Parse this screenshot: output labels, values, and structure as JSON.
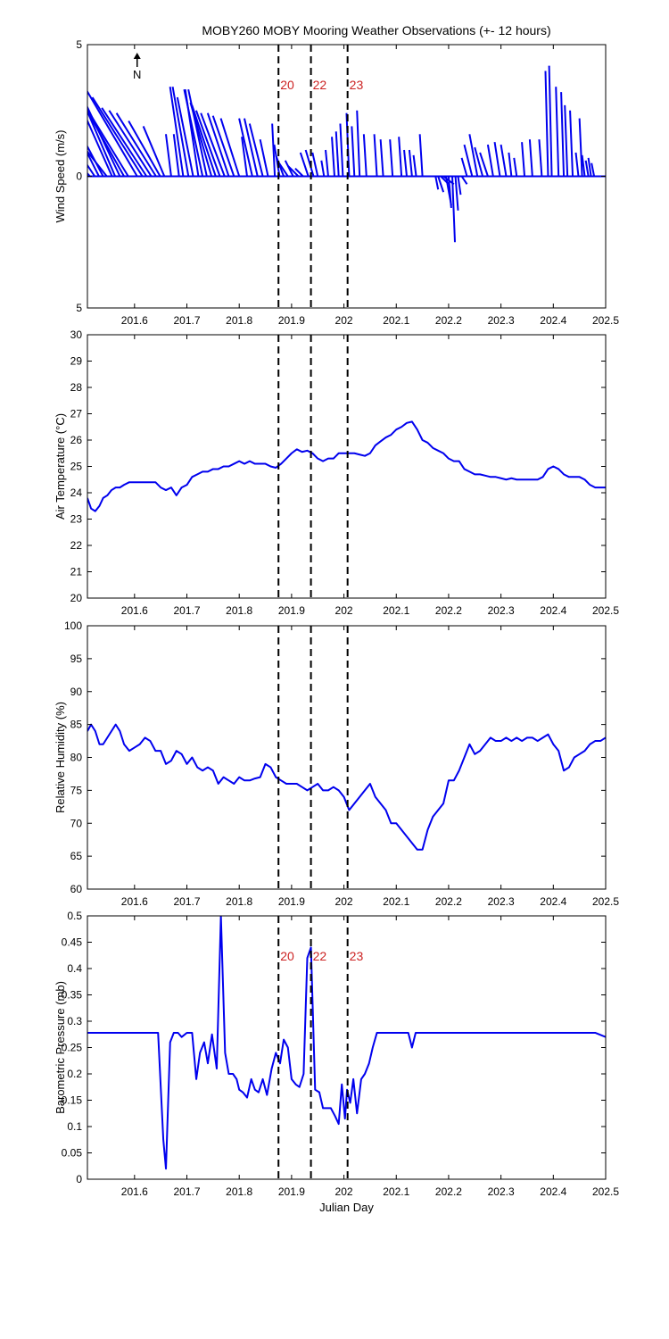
{
  "title": "MOBY260 MOBY Mooring Weather Observations (+- 12 hours)",
  "colors": {
    "series": "#0000ee",
    "event": "#cc2222",
    "axis": "#000000"
  },
  "north_indicator": "N",
  "events": [
    {
      "x": 201.875,
      "label": "20"
    },
    {
      "x": 201.937,
      "label": "22"
    },
    {
      "x": 202.007,
      "label": "23"
    }
  ],
  "chart_data": [
    {
      "id": "wind",
      "type": "vector",
      "ylabel": "Wind Speed (m/s)",
      "xlabel": "",
      "xlim": [
        201.51,
        202.5
      ],
      "ylim": [
        -5,
        5
      ],
      "yticks": [
        -5,
        0,
        5
      ],
      "yticklabels": [
        "5",
        "0",
        "5"
      ],
      "xticks": [
        201.6,
        201.7,
        201.8,
        201.9,
        202,
        202.1,
        202.2,
        202.3,
        202.4,
        202.5
      ],
      "show_event_labels": true,
      "show_north": true,
      "vectors": [
        [
          201.515,
          -3.0,
          3.2
        ],
        [
          201.524,
          -1.8,
          2.7
        ],
        [
          201.532,
          -1.3,
          2.6
        ],
        [
          201.54,
          -0.9,
          1.7
        ],
        [
          201.547,
          -1.1,
          1.4
        ],
        [
          201.557,
          -1.2,
          2.7
        ],
        [
          201.563,
          -1.5,
          3.5
        ],
        [
          201.572,
          -1.6,
          3.4
        ],
        [
          201.58,
          -1.8,
          3.2
        ],
        [
          201.588,
          -1.9,
          3.1
        ],
        [
          201.605,
          -2.0,
          3.4
        ],
        [
          201.615,
          -1.9,
          3.0
        ],
        [
          201.623,
          -1.7,
          2.6
        ],
        [
          201.632,
          -1.6,
          2.5
        ],
        [
          201.641,
          -1.5,
          2.4
        ],
        [
          201.649,
          -1.2,
          2.1
        ],
        [
          201.657,
          -0.8,
          1.9
        ],
        [
          201.67,
          -0.2,
          1.6
        ],
        [
          201.685,
          -0.2,
          1.6
        ],
        [
          201.693,
          -0.5,
          3.4
        ],
        [
          201.703,
          -0.6,
          3.4
        ],
        [
          201.712,
          -0.6,
          3.0
        ],
        [
          201.722,
          -0.5,
          3.3
        ],
        [
          201.73,
          -0.7,
          3.3
        ],
        [
          201.738,
          -0.7,
          3.3
        ],
        [
          201.747,
          -0.8,
          2.8
        ],
        [
          201.755,
          -0.9,
          2.7
        ],
        [
          201.763,
          -0.9,
          2.5
        ],
        [
          201.772,
          -0.9,
          2.4
        ],
        [
          201.78,
          -0.8,
          2.4
        ],
        [
          201.79,
          -0.8,
          2.3
        ],
        [
          201.8,
          -0.7,
          2.2
        ],
        [
          201.815,
          -0.2,
          1.5
        ],
        [
          201.825,
          -0.5,
          2.2
        ],
        [
          201.835,
          -0.5,
          2.2
        ],
        [
          201.845,
          -0.5,
          2.0
        ],
        [
          201.855,
          -0.3,
          1.4
        ],
        [
          201.868,
          -0.1,
          2.0
        ],
        [
          201.877,
          -0.2,
          1.2
        ],
        [
          201.885,
          -0.3,
          0.8
        ],
        [
          201.893,
          -0.4,
          0.6
        ],
        [
          201.903,
          -0.3,
          0.6
        ],
        [
          201.913,
          -0.4,
          0.4
        ],
        [
          201.922,
          -0.3,
          0.3
        ],
        [
          201.932,
          -0.3,
          0.9
        ],
        [
          201.942,
          -0.3,
          1.0
        ],
        [
          201.95,
          -0.2,
          0.9
        ],
        [
          201.962,
          -0.1,
          0.6
        ],
        [
          201.97,
          -0.1,
          1.0
        ],
        [
          201.982,
          -0.1,
          1.5
        ],
        [
          201.99,
          -0.1,
          1.7
        ],
        [
          201.998,
          -0.1,
          2.0
        ],
        [
          202.01,
          -0.1,
          2.4
        ],
        [
          202.02,
          -0.1,
          1.9
        ],
        [
          202.03,
          -0.1,
          2.5
        ],
        [
          202.043,
          -0.1,
          1.6
        ],
        [
          202.063,
          -0.1,
          1.6
        ],
        [
          202.075,
          -0.1,
          1.4
        ],
        [
          202.093,
          -0.1,
          1.4
        ],
        [
          202.11,
          -0.1,
          1.5
        ],
        [
          202.12,
          -0.1,
          1.0
        ],
        [
          202.13,
          -0.1,
          1.0
        ],
        [
          202.138,
          -0.1,
          0.8
        ],
        [
          202.15,
          -0.1,
          1.6
        ],
        [
          202.175,
          0.1,
          -0.5
        ],
        [
          202.18,
          0.2,
          -0.6
        ],
        [
          202.185,
          0.3,
          -0.3
        ],
        [
          202.19,
          0.4,
          -0.3
        ],
        [
          202.195,
          0.2,
          -1.1
        ],
        [
          202.2,
          0.1,
          -1.2
        ],
        [
          202.207,
          0.1,
          -2.5
        ],
        [
          202.213,
          0.1,
          -1.3
        ],
        [
          202.218,
          0.1,
          -0.7
        ],
        [
          202.225,
          0.2,
          -0.3
        ],
        [
          202.235,
          -0.2,
          0.7
        ],
        [
          202.245,
          -0.3,
          1.2
        ],
        [
          202.255,
          -0.3,
          1.6
        ],
        [
          202.265,
          -0.3,
          1.1
        ],
        [
          202.275,
          -0.3,
          0.9
        ],
        [
          202.285,
          -0.2,
          1.2
        ],
        [
          202.298,
          -0.2,
          1.3
        ],
        [
          202.31,
          -0.2,
          1.2
        ],
        [
          202.32,
          -0.1,
          0.9
        ],
        [
          202.33,
          -0.1,
          0.7
        ],
        [
          202.345,
          -0.1,
          1.3
        ],
        [
          202.36,
          -0.1,
          1.4
        ],
        [
          202.378,
          -0.1,
          1.4
        ],
        [
          202.39,
          -0.1,
          4.0
        ],
        [
          202.397,
          -0.1,
          4.2
        ],
        [
          202.41,
          -0.1,
          3.4
        ],
        [
          202.42,
          -0.1,
          3.2
        ],
        [
          202.427,
          -0.1,
          2.7
        ],
        [
          202.437,
          -0.1,
          2.5
        ],
        [
          202.448,
          -0.1,
          0.9
        ],
        [
          202.455,
          -0.1,
          2.2
        ],
        [
          202.46,
          -0.1,
          0.8
        ],
        [
          202.467,
          -0.1,
          0.6
        ],
        [
          202.472,
          -0.1,
          0.7
        ],
        [
          202.478,
          -0.1,
          0.5
        ]
      ]
    },
    {
      "id": "temp",
      "type": "line",
      "ylabel": "Air Temperature (°C)",
      "xlabel": "",
      "xlim": [
        201.51,
        202.5
      ],
      "ylim": [
        20,
        30
      ],
      "yticks": [
        20,
        21,
        22,
        23,
        24,
        25,
        26,
        27,
        28,
        29,
        30
      ],
      "xticks": [
        201.6,
        201.7,
        201.8,
        201.9,
        202,
        202.1,
        202.2,
        202.3,
        202.4,
        202.5
      ],
      "show_event_labels": false,
      "x": [
        201.51,
        201.517,
        201.525,
        201.533,
        201.54,
        201.548,
        201.556,
        201.564,
        201.572,
        201.58,
        201.59,
        201.6,
        201.61,
        201.62,
        201.63,
        201.64,
        201.65,
        201.66,
        201.67,
        201.68,
        201.69,
        201.7,
        201.71,
        201.72,
        201.73,
        201.74,
        201.75,
        201.76,
        201.77,
        201.78,
        201.79,
        201.8,
        201.81,
        201.82,
        201.83,
        201.84,
        201.85,
        201.86,
        201.87,
        201.88,
        201.89,
        201.9,
        201.91,
        201.92,
        201.93,
        201.94,
        201.95,
        201.96,
        201.97,
        201.98,
        201.99,
        202,
        202.01,
        202.02,
        202.03,
        202.04,
        202.05,
        202.06,
        202.07,
        202.08,
        202.09,
        202.1,
        202.11,
        202.12,
        202.13,
        202.14,
        202.15,
        202.16,
        202.17,
        202.18,
        202.19,
        202.2,
        202.21,
        202.22,
        202.23,
        202.24,
        202.25,
        202.26,
        202.27,
        202.28,
        202.29,
        202.3,
        202.31,
        202.32,
        202.33,
        202.34,
        202.35,
        202.36,
        202.37,
        202.38,
        202.39,
        202.4,
        202.41,
        202.42,
        202.43,
        202.44,
        202.45,
        202.46,
        202.47,
        202.48,
        202.49,
        202.5
      ],
      "y": [
        23.8,
        23.4,
        23.3,
        23.5,
        23.8,
        23.9,
        24.1,
        24.2,
        24.2,
        24.3,
        24.4,
        24.4,
        24.4,
        24.4,
        24.4,
        24.4,
        24.2,
        24.1,
        24.2,
        23.9,
        24.2,
        24.3,
        24.6,
        24.7,
        24.8,
        24.8,
        24.9,
        24.9,
        25.0,
        25.0,
        25.1,
        25.2,
        25.1,
        25.2,
        25.1,
        25.1,
        25.1,
        25.0,
        24.95,
        25.1,
        25.3,
        25.5,
        25.65,
        25.55,
        25.6,
        25.5,
        25.3,
        25.2,
        25.3,
        25.3,
        25.5,
        25.5,
        25.5,
        25.5,
        25.45,
        25.4,
        25.5,
        25.8,
        25.95,
        26.1,
        26.2,
        26.4,
        26.5,
        26.65,
        26.7,
        26.4,
        26.0,
        25.9,
        25.7,
        25.6,
        25.5,
        25.3,
        25.2,
        25.2,
        24.9,
        24.8,
        24.7,
        24.7,
        24.65,
        24.6,
        24.6,
        24.55,
        24.5,
        24.55,
        24.5,
        24.5,
        24.5,
        24.5,
        24.5,
        24.6,
        24.9,
        25.0,
        24.9,
        24.7,
        24.6,
        24.6,
        24.6,
        24.5,
        24.3,
        24.2,
        24.2,
        24.2
      ]
    },
    {
      "id": "rh",
      "type": "line",
      "ylabel": "Relative Humidity (%)",
      "xlabel": "",
      "xlim": [
        201.51,
        202.5
      ],
      "ylim": [
        60,
        100
      ],
      "yticks": [
        60,
        65,
        70,
        75,
        80,
        85,
        90,
        95,
        100
      ],
      "xticks": [
        201.6,
        201.7,
        201.8,
        201.9,
        202,
        202.1,
        202.2,
        202.3,
        202.4,
        202.5
      ],
      "show_event_labels": false,
      "x": [
        201.51,
        201.517,
        201.525,
        201.533,
        201.54,
        201.548,
        201.556,
        201.564,
        201.572,
        201.58,
        201.59,
        201.6,
        201.61,
        201.62,
        201.63,
        201.64,
        201.65,
        201.66,
        201.67,
        201.68,
        201.69,
        201.7,
        201.71,
        201.72,
        201.73,
        201.74,
        201.75,
        201.76,
        201.77,
        201.78,
        201.79,
        201.8,
        201.81,
        201.82,
        201.83,
        201.84,
        201.85,
        201.86,
        201.87,
        201.88,
        201.89,
        201.9,
        201.91,
        201.92,
        201.93,
        201.94,
        201.95,
        201.96,
        201.97,
        201.98,
        201.99,
        202,
        202.01,
        202.02,
        202.03,
        202.04,
        202.05,
        202.06,
        202.07,
        202.08,
        202.09,
        202.1,
        202.11,
        202.12,
        202.13,
        202.14,
        202.15,
        202.16,
        202.17,
        202.18,
        202.19,
        202.2,
        202.21,
        202.22,
        202.23,
        202.24,
        202.25,
        202.26,
        202.27,
        202.28,
        202.29,
        202.3,
        202.31,
        202.32,
        202.33,
        202.34,
        202.35,
        202.36,
        202.37,
        202.38,
        202.39,
        202.4,
        202.41,
        202.42,
        202.43,
        202.44,
        202.45,
        202.46,
        202.47,
        202.48,
        202.49,
        202.5
      ],
      "y": [
        84,
        85,
        84,
        82,
        82,
        83,
        84,
        85,
        84,
        82,
        81,
        81.5,
        82,
        83,
        82.5,
        81,
        81,
        79,
        79.5,
        81,
        80.5,
        79,
        80,
        78.5,
        78,
        78.5,
        78,
        76,
        77,
        76.5,
        76,
        77,
        76.5,
        76.5,
        76.8,
        77,
        79,
        78.5,
        77,
        76.5,
        76,
        76,
        76,
        75.5,
        75,
        75.5,
        76,
        75,
        75,
        75.5,
        75,
        74,
        72,
        73,
        74,
        75,
        76,
        74,
        73,
        72,
        70,
        70,
        69,
        68,
        67,
        66,
        66,
        69,
        71,
        72,
        73,
        76.5,
        76.5,
        78,
        80,
        82,
        80.5,
        81,
        82,
        83,
        82.5,
        82.5,
        83,
        82.5,
        83,
        82.5,
        83,
        83,
        82.5,
        83,
        83.5,
        82,
        81,
        78,
        78.5,
        80,
        80.5,
        81,
        82,
        82.5,
        82.5,
        83
      ],
      "cutoff_note": ""
    },
    {
      "id": "baro",
      "type": "line",
      "ylabel": "Barometric Pressure (mb)",
      "xlabel": "Julian Day",
      "xlim": [
        201.51,
        202.5
      ],
      "ylim": [
        0,
        0.5
      ],
      "yticks": [
        0,
        0.05,
        0.1,
        0.15,
        0.2,
        0.25,
        0.3,
        0.35,
        0.4,
        0.45,
        0.5
      ],
      "xticks": [
        201.6,
        201.7,
        201.8,
        201.9,
        202,
        202.1,
        202.2,
        202.3,
        202.4,
        202.5
      ],
      "show_event_labels": true,
      "x": [
        201.51,
        201.52,
        201.53,
        201.54,
        201.55,
        201.56,
        201.57,
        201.58,
        201.59,
        201.6,
        201.61,
        201.62,
        201.63,
        201.64,
        201.645,
        201.655,
        201.66,
        201.668,
        201.675,
        201.683,
        201.69,
        201.7,
        201.71,
        201.718,
        201.725,
        201.733,
        201.74,
        201.748,
        201.757,
        201.765,
        201.773,
        201.78,
        201.788,
        201.795,
        201.8,
        201.807,
        201.815,
        201.823,
        201.83,
        201.837,
        201.845,
        201.853,
        201.862,
        201.87,
        201.878,
        201.885,
        201.893,
        201.9,
        201.908,
        201.915,
        201.923,
        201.93,
        201.937,
        201.945,
        201.953,
        201.96,
        201.968,
        201.975,
        201.983,
        201.99,
        201.996,
        202.002,
        202.006,
        202.012,
        202.018,
        202.025,
        202.033,
        202.04,
        202.048,
        202.055,
        202.063,
        202.07,
        202.078,
        202.085,
        202.093,
        202.1,
        202.108,
        202.115,
        202.123,
        202.13,
        202.137,
        202.145,
        202.153,
        202.16,
        202.17,
        202.18,
        202.19,
        202.2,
        202.22,
        202.25,
        202.28,
        202.3,
        202.32,
        202.33,
        202.34,
        202.35,
        202.37,
        202.4,
        202.42,
        202.44,
        202.46,
        202.48,
        202.5
      ],
      "y": [
        0.278,
        0.278,
        0.278,
        0.278,
        0.278,
        0.278,
        0.278,
        0.278,
        0.278,
        0.278,
        0.278,
        0.278,
        0.278,
        0.278,
        0.278,
        0.075,
        0.02,
        0.26,
        0.278,
        0.278,
        0.27,
        0.278,
        0.278,
        0.19,
        0.24,
        0.26,
        0.22,
        0.275,
        0.21,
        0.5,
        0.24,
        0.2,
        0.2,
        0.19,
        0.17,
        0.165,
        0.155,
        0.19,
        0.17,
        0.165,
        0.19,
        0.16,
        0.21,
        0.24,
        0.22,
        0.265,
        0.25,
        0.19,
        0.18,
        0.175,
        0.2,
        0.42,
        0.44,
        0.17,
        0.165,
        0.135,
        0.135,
        0.135,
        0.12,
        0.105,
        0.18,
        0.115,
        0.17,
        0.145,
        0.19,
        0.125,
        0.19,
        0.2,
        0.22,
        0.25,
        0.278,
        0.278,
        0.278,
        0.278,
        0.278,
        0.278,
        0.278,
        0.278,
        0.278,
        0.25,
        0.278,
        0.278,
        0.278,
        0.278,
        0.278,
        0.278,
        0.278,
        0.278,
        0.278,
        0.278,
        0.278,
        0.278,
        0.278,
        0.278,
        0.278,
        0.278,
        0.278,
        0.278,
        0.278,
        0.278,
        0.278,
        0.278,
        0.27
      ]
    }
  ]
}
